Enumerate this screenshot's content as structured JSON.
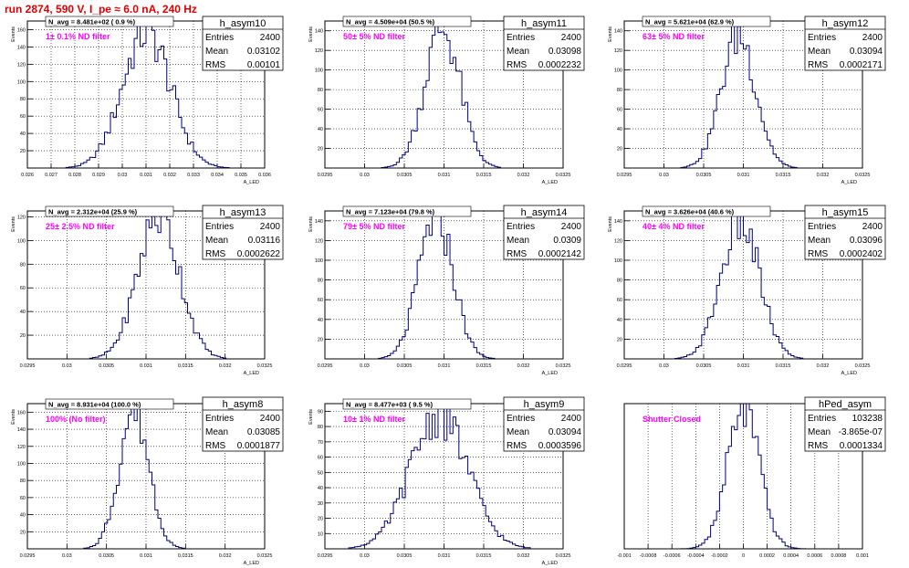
{
  "run_title": "run 2874,   590 V, I_pe ≈ 6.0 nA, 240 Hz",
  "colors": {
    "histogram": "#00007f",
    "label": "#ff00ff",
    "title": "#e00000",
    "grid": "#000000"
  },
  "chart_data": [
    {
      "type": "bar",
      "name": "h_asym10",
      "navg": "N_avg = 8.481e+02 ( 0.9 %)",
      "filter": "1± 0.1% ND filter",
      "stats": {
        "entries_label": "Entries",
        "entries": "2400",
        "mean_label": "Mean",
        "mean": "0.03102",
        "rms_label": "RMS",
        "rms": "0.00101"
      },
      "ylabel": "Events",
      "xlabel": "A_LED",
      "xlim": [
        0.026,
        0.036
      ],
      "ylim": [
        0,
        170
      ],
      "xticks": [
        0.026,
        0.027,
        0.028,
        0.029,
        0.03,
        0.031,
        0.032,
        0.033,
        0.034,
        0.035,
        0.036
      ],
      "xticklabels": [
        "0.026",
        "0.027",
        "0.028",
        "0.029",
        "0.03",
        "0.031",
        "0.032",
        "0.033",
        "0.034",
        "0.035",
        "0.036"
      ],
      "yticks": [
        20,
        40,
        60,
        80,
        100,
        120,
        140,
        160
      ],
      "mean": 0.03102,
      "sigma": 0.00101,
      "peak": 158
    },
    {
      "type": "bar",
      "name": "h_asym11",
      "navg": "N_avg = 4.509e+04 (50.5 %)",
      "filter": "50± 5% ND filter",
      "stats": {
        "entries_label": "Entries",
        "entries": "2400",
        "mean_label": "Mean",
        "mean": "0.03098",
        "rms_label": "RMS",
        "rms": "0.0002232"
      },
      "ylabel": "Events",
      "xlabel": "A_LED",
      "xlim": [
        0.0295,
        0.0325
      ],
      "ylim": [
        0,
        150
      ],
      "xticks": [
        0.0295,
        0.03,
        0.0305,
        0.031,
        0.0315,
        0.032,
        0.0325
      ],
      "xticklabels": [
        "0.0295",
        "0.03",
        "0.0305",
        "0.031",
        "0.0315",
        "0.032",
        "0.0325"
      ],
      "yticks": [
        20,
        40,
        60,
        80,
        100,
        120,
        140
      ],
      "mean": 0.03098,
      "sigma": 0.0002232,
      "peak": 142
    },
    {
      "type": "bar",
      "name": "h_asym12",
      "navg": "N_avg = 5.621e+04 (62.9 %)",
      "filter": "63± 5% ND filter",
      "stats": {
        "entries_label": "Entries",
        "entries": "2400",
        "mean_label": "Mean",
        "mean": "0.03094",
        "rms_label": "RMS",
        "rms": "0.0002171"
      },
      "ylabel": "Events",
      "xlabel": "A_LED",
      "xlim": [
        0.0295,
        0.0325
      ],
      "ylim": [
        0,
        150
      ],
      "xticks": [
        0.0295,
        0.03,
        0.0305,
        0.031,
        0.0315,
        0.032,
        0.0325
      ],
      "xticklabels": [
        "0.0295",
        "0.03",
        "0.0305",
        "0.031",
        "0.0315",
        "0.032",
        "0.0325"
      ],
      "yticks": [
        20,
        40,
        60,
        80,
        100,
        120,
        140
      ],
      "mean": 0.03094,
      "sigma": 0.0002171,
      "peak": 136
    },
    {
      "type": "bar",
      "name": "h_asym13",
      "navg": "N_avg = 2.312e+04 (25.9 %)",
      "filter": "25± 2.5% ND filter",
      "stats": {
        "entries_label": "Entries",
        "entries": "2400",
        "mean_label": "Mean",
        "mean": "0.03116",
        "rms_label": "RMS",
        "rms": "0.0002622"
      },
      "ylabel": "Events",
      "xlabel": "A_LED",
      "xlim": [
        0.0295,
        0.0325
      ],
      "ylim": [
        0,
        125
      ],
      "xticks": [
        0.0295,
        0.03,
        0.0305,
        0.031,
        0.0315,
        0.032,
        0.0325
      ],
      "xticklabels": [
        "0.0295",
        "0.03",
        "0.0305",
        "0.031",
        "0.0315",
        "0.032",
        "0.0325"
      ],
      "yticks": [
        20,
        40,
        60,
        80,
        100,
        120
      ],
      "mean": 0.03116,
      "sigma": 0.0002622,
      "peak": 122
    },
    {
      "type": "bar",
      "name": "h_asym14",
      "navg": "N_avg = 7.123e+04 (79.8 %)",
      "filter": "79± 5% ND filter",
      "stats": {
        "entries_label": "Entries",
        "entries": "2400",
        "mean_label": "Mean",
        "mean": "0.0309",
        "rms_label": "RMS",
        "rms": "0.0002142"
      },
      "ylabel": "Events",
      "xlabel": "A_LED",
      "xlim": [
        0.0295,
        0.0325
      ],
      "ylim": [
        0,
        150
      ],
      "xticks": [
        0.0295,
        0.03,
        0.0305,
        0.031,
        0.0315,
        0.032,
        0.0325
      ],
      "xticklabels": [
        "0.0295",
        "0.03",
        "0.0305",
        "0.031",
        "0.0315",
        "0.032",
        "0.0325"
      ],
      "yticks": [
        20,
        40,
        60,
        80,
        100,
        120,
        140
      ],
      "mean": 0.0309,
      "sigma": 0.0002142,
      "peak": 146
    },
    {
      "type": "bar",
      "name": "h_asym15",
      "navg": "N_avg = 3.626e+04 (40.6 %)",
      "filter": "40± 4% ND filter",
      "stats": {
        "entries_label": "Entries",
        "entries": "2400",
        "mean_label": "Mean",
        "mean": "0.03096",
        "rms_label": "RMS",
        "rms": "0.0002402"
      },
      "ylabel": "Events",
      "xlabel": "A_LED",
      "xlim": [
        0.0295,
        0.0325
      ],
      "ylim": [
        0,
        150
      ],
      "xticks": [
        0.0295,
        0.03,
        0.0305,
        0.031,
        0.0315,
        0.032,
        0.0325
      ],
      "xticklabels": [
        "0.0295",
        "0.03",
        "0.0305",
        "0.031",
        "0.0315",
        "0.032",
        "0.0325"
      ],
      "yticks": [
        20,
        40,
        60,
        80,
        100,
        120,
        140
      ],
      "mean": 0.03096,
      "sigma": 0.0002402,
      "peak": 140
    },
    {
      "type": "bar",
      "name": "h_asym8",
      "navg": "N_avg = 8.931e+04 (100.0 %)",
      "filter": "100% (No filter)",
      "stats": {
        "entries_label": "Entries",
        "entries": "2400",
        "mean_label": "Mean",
        "mean": "0.03085",
        "rms_label": "RMS",
        "rms": "0.0001877"
      },
      "ylabel": "Events",
      "xlabel": "A_LED",
      "xlim": [
        0.0295,
        0.0325
      ],
      "ylim": [
        0,
        170
      ],
      "xticks": [
        0.0295,
        0.03,
        0.0305,
        0.031,
        0.0315,
        0.032,
        0.0325
      ],
      "xticklabels": [
        "0.0295",
        "0.03",
        "0.0305",
        "0.031",
        "0.0315",
        "0.032",
        "0.0325"
      ],
      "yticks": [
        20,
        40,
        60,
        80,
        100,
        120,
        140,
        160
      ],
      "mean": 0.03085,
      "sigma": 0.0001877,
      "peak": 164
    },
    {
      "type": "bar",
      "name": "h_asym9",
      "navg": "N_avg = 8.477e+03 ( 9.5 %)",
      "filter": "10± 1% ND filter",
      "stats": {
        "entries_label": "Entries",
        "entries": "2400",
        "mean_label": "Mean",
        "mean": "0.03094",
        "rms_label": "RMS",
        "rms": "0.0003596"
      },
      "ylabel": "Events",
      "xlabel": "A_LED",
      "xlim": [
        0.0295,
        0.0325
      ],
      "ylim": [
        0,
        95
      ],
      "xticks": [
        0.0295,
        0.03,
        0.0305,
        0.031,
        0.0315,
        0.032,
        0.0325
      ],
      "xticklabels": [
        "0.0295",
        "0.03",
        "0.0305",
        "0.031",
        "0.0315",
        "0.032",
        "0.0325"
      ],
      "yticks": [
        10,
        20,
        30,
        40,
        50,
        60,
        70,
        80,
        90
      ],
      "mean": 0.03094,
      "sigma": 0.0003596,
      "peak": 88
    },
    {
      "type": "bar",
      "name": "hPed_asym",
      "navg": "",
      "filter": "Shutter Closed",
      "stats": {
        "entries_label": "Entries",
        "entries": "103238",
        "mean_label": "Mean",
        "mean": "-3.865e-07",
        "rms_label": "RMS",
        "rms": "0.0001334"
      },
      "ylabel": "",
      "xlabel": "",
      "xlim": [
        -0.001,
        0.001
      ],
      "ylim": [
        0,
        6000
      ],
      "xticks": [
        -0.001,
        -0.0008,
        -0.0006,
        -0.0004,
        -0.0002,
        0,
        0.0002,
        0.0004,
        0.0006,
        0.0008,
        0.001
      ],
      "xticklabels": [
        "-0.001",
        "-0.0008",
        "-0.0006",
        "-0.0004",
        "-0.0002",
        "0",
        "0.0002",
        "0.0004",
        "0.0006",
        "0.0008",
        "0.001"
      ],
      "yticks": [],
      "mean": 0.0,
      "sigma": 0.0001334,
      "peak": 5800
    }
  ]
}
